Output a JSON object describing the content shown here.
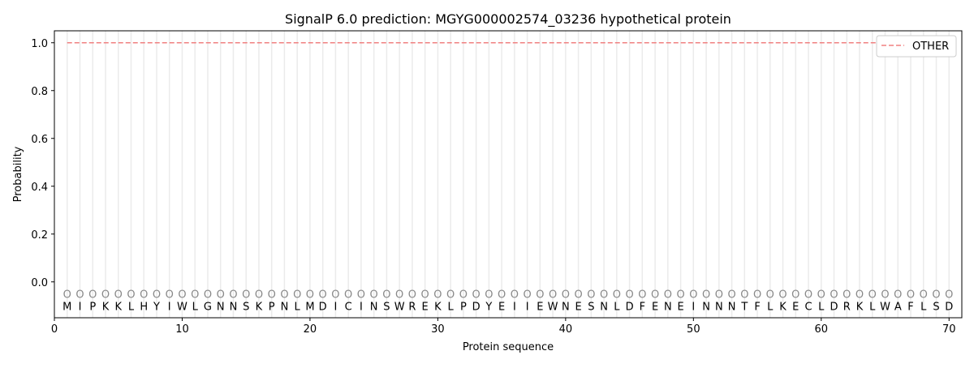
{
  "chart_data": {
    "type": "line",
    "title": "SignalP 6.0 prediction: MGYG000002574_03236 hypothetical protein",
    "xlabel": "Protein sequence",
    "ylabel": "Probability",
    "xlim": [
      0,
      71
    ],
    "ylim": [
      -0.15,
      1.05
    ],
    "xticks": [
      0,
      10,
      20,
      30,
      40,
      50,
      60,
      70
    ],
    "yticks": [
      0.0,
      0.2,
      0.4,
      0.6,
      0.8,
      1.0
    ],
    "grid": "vertical lines at each residue",
    "legend_position": "top-right",
    "sequence": [
      "M",
      "I",
      "P",
      "K",
      "K",
      "L",
      "H",
      "Y",
      "I",
      "W",
      "L",
      "G",
      "N",
      "N",
      "S",
      "K",
      "P",
      "N",
      "L",
      "M",
      "D",
      "I",
      "C",
      "I",
      "N",
      "S",
      "W",
      "R",
      "E",
      "K",
      "L",
      "P",
      "D",
      "Y",
      "E",
      "I",
      "I",
      "E",
      "W",
      "N",
      "E",
      "S",
      "N",
      "L",
      "D",
      "F",
      "E",
      "N",
      "E",
      "I",
      "N",
      "N",
      "N",
      "T",
      "F",
      "L",
      "K",
      "E",
      "C",
      "L",
      "D",
      "R",
      "K",
      "L",
      "W",
      "A",
      "F",
      "L",
      "S",
      "D"
    ],
    "region_label": "O",
    "region_label_y": -0.05,
    "series": [
      {
        "name": "OTHER",
        "color": "#f08080",
        "style": "dashed",
        "x_start": 1,
        "x_end": 70,
        "value": 1.0
      }
    ]
  }
}
